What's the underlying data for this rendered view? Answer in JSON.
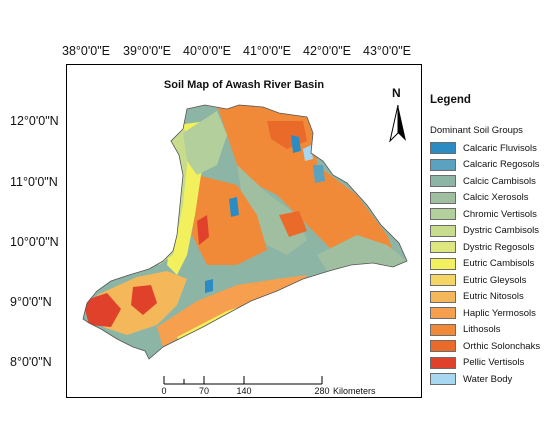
{
  "map_title": "Soil Map of Awash River Basin",
  "longitude_labels": [
    "38°0'0\"E",
    "39°0'0\"E",
    "40°0'0\"E",
    "41°0'0\"E",
    "42°0'0\"E",
    "43°0'0\"E"
  ],
  "latitude_labels": [
    "12°0'0\"N",
    "11°0'0\"N",
    "10°0'0\"N",
    "9°0'0\"N",
    "8°0'0\"N"
  ],
  "north_arrow": {
    "label": "N",
    "icon": "north-arrow-icon"
  },
  "legend": {
    "title": "Legend",
    "subtitle": "Dominant Soil Groups",
    "items": [
      {
        "label": "Calcaric Fluvisols",
        "color": "#2b8cc4"
      },
      {
        "label": "Calcaric Regosols",
        "color": "#5aa2c0"
      },
      {
        "label": "Calcic Cambisols",
        "color": "#8db5a6"
      },
      {
        "label": "Calcic Xerosols",
        "color": "#a0bfa0"
      },
      {
        "label": "Chromic Vertisols",
        "color": "#b3cf9b"
      },
      {
        "label": "Dystric Cambisols",
        "color": "#c8dc8e"
      },
      {
        "label": "Dystric Regosols",
        "color": "#dde67f"
      },
      {
        "label": "Eutric Cambisols",
        "color": "#f2f05c"
      },
      {
        "label": "Eutric Gleysols",
        "color": "#f5d564"
      },
      {
        "label": "Eutric Nitosols",
        "color": "#f4b75a"
      },
      {
        "label": "Haplic Yermosols",
        "color": "#f59f4f"
      },
      {
        "label": "Lithosols",
        "color": "#f08a38"
      },
      {
        "label": "Orthic Solonchaks",
        "color": "#ea6a2a"
      },
      {
        "label": "Pellic Vertisols",
        "color": "#e0412a"
      },
      {
        "label": "Water Body",
        "color": "#a8d7f2"
      }
    ]
  },
  "scale_bar": {
    "ticks": [
      "0",
      "70",
      "140",
      "280"
    ],
    "unit": "Kilometers"
  }
}
